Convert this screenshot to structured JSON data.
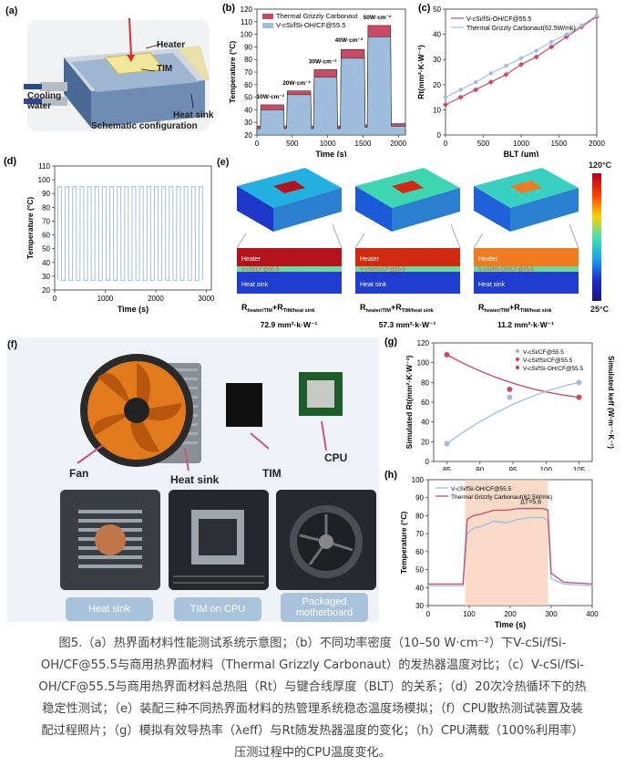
{
  "panels": {
    "a": {
      "label": "(a)",
      "heater": "Heater",
      "tim": "TIM",
      "cooling": "Cooling\nwater",
      "heatsink": "Heat sink",
      "caption": "Schematic configuration"
    },
    "e": {
      "label": "(e)",
      "scale_max": "120°C",
      "scale_min": "25°C",
      "heater": "Heater",
      "sample": "V-cSi/CF@55.5",
      "sample2": "V-cSi/fSi/CF@55.5",
      "sample3": "V-cSi/fSi-OH/CF@55.5",
      "heatsink": "Heat sink",
      "formula": "R",
      "sub1": "heater/TIM",
      "plus": "+R",
      "sub2": "TIM/heat sink",
      "values": [
        "72.9 mm²·k·W⁻¹",
        "57.3 mm²·k·W⁻¹",
        "11.2 mm²·k·W⁻¹"
      ]
    },
    "f": {
      "label": "(f)",
      "fan": "Fan",
      "heatsink": "Heat sink",
      "tim": "TIM",
      "cpu": "CPU",
      "pills": [
        "Heat sink",
        "TIM on CPU",
        "Packaged\nmotherboard"
      ]
    }
  },
  "chart_data": [
    {
      "id": "b",
      "label": "(b)",
      "type": "area",
      "xlabel": "Time (s)",
      "ylabel": "Temperature (°C)",
      "xlim": [
        0,
        2100
      ],
      "ylim": [
        20,
        120
      ],
      "xticks": [
        0,
        500,
        1000,
        1500,
        2000
      ],
      "yticks": [
        20,
        30,
        40,
        50,
        60,
        70,
        80,
        90,
        100,
        110,
        120
      ],
      "series": [
        {
          "name": "Thermal Grizzly Carbonaut",
          "color": "#c94a62",
          "x": [
            0,
            50,
            55,
            380,
            385,
            420,
            430,
            760,
            770,
            800,
            810,
            1130,
            1140,
            1180,
            1190,
            1520,
            1530,
            1560,
            1570,
            1890,
            1900,
            1940,
            1950,
            2080,
            2100
          ],
          "y": [
            27,
            27,
            44,
            44,
            27,
            27,
            55,
            55,
            27,
            27,
            72,
            72,
            27,
            27,
            88,
            88,
            28,
            28,
            107,
            107,
            29,
            29,
            29,
            29,
            29
          ]
        },
        {
          "name": "V-cSi/fSi-OH/CF@55.5",
          "color": "#9fbede",
          "x": [
            0,
            50,
            55,
            380,
            385,
            420,
            430,
            760,
            770,
            800,
            810,
            1130,
            1140,
            1180,
            1190,
            1520,
            1530,
            1560,
            1570,
            1890,
            1900,
            1940,
            1950,
            2080,
            2100
          ],
          "y": [
            25,
            25,
            40,
            40,
            25,
            25,
            52,
            52,
            25,
            25,
            66,
            66,
            25,
            25,
            81,
            81,
            26,
            26,
            98,
            98,
            27,
            27,
            27,
            27,
            27
          ]
        }
      ],
      "annotations": [
        {
          "text": "10W·cm⁻²",
          "x": 190,
          "y": 49
        },
        {
          "text": "20W·cm⁻²",
          "x": 560,
          "y": 60
        },
        {
          "text": "30W·cm⁻²",
          "x": 930,
          "y": 77
        },
        {
          "text": "40W·cm⁻²",
          "x": 1300,
          "y": 94
        },
        {
          "text": "50W·cm⁻²",
          "x": 1700,
          "y": 112
        }
      ]
    },
    {
      "id": "c",
      "label": "(c)",
      "type": "line",
      "xlabel": "BLT (μm)",
      "ylabel": "Rt(mm²·K·W⁻¹)",
      "xlim": [
        0,
        2000
      ],
      "ylim": [
        0,
        50
      ],
      "xticks": [
        0,
        500,
        1000,
        1500,
        2000
      ],
      "yticks": [
        0,
        10,
        20,
        30,
        40,
        50
      ],
      "series": [
        {
          "name": "V-cSi/fSi-OH/CF@55.5",
          "color": "#c94a62",
          "marker": "diamond",
          "x": [
            0,
            200,
            400,
            600,
            800,
            1000,
            1200,
            1400,
            1600,
            1800,
            2000
          ],
          "y": [
            12,
            15,
            18,
            21,
            24,
            28,
            31,
            35,
            39,
            43,
            47
          ]
        },
        {
          "name": "Thermal Grizzly Carbonaut(62.5W/mk)",
          "color": "#9fbede",
          "marker": "dot",
          "x": [
            0,
            200,
            400,
            600,
            800,
            1000,
            1200,
            1400,
            1600,
            1800,
            2000
          ],
          "y": [
            15,
            18,
            21,
            24.5,
            27.5,
            30.5,
            33.5,
            37,
            40,
            43.5,
            47.5
          ]
        }
      ]
    },
    {
      "id": "d",
      "label": "(d)",
      "type": "line",
      "xlabel": "Time (s)",
      "ylabel": "Temperature (°C)",
      "xlim": [
        0,
        3100
      ],
      "ylim": [
        20,
        110
      ],
      "xticks": [
        0,
        1000,
        2000,
        3000
      ],
      "yticks": [
        20,
        30,
        40,
        50,
        60,
        70,
        80,
        90,
        100,
        110
      ],
      "cycles": 20,
      "low": 27,
      "high": 95,
      "color": "#9fbede"
    },
    {
      "id": "g",
      "label": "(g)",
      "type": "scatter",
      "xlabel": "",
      "ylabel": "Simulated Rt(mm²·K·W⁻¹)",
      "ylabel_right": "Simulated keff (W·m⁻¹·K⁻¹)",
      "xlim": [
        83,
        107
      ],
      "ylim": [
        0,
        120
      ],
      "xticks": [
        85,
        90,
        95,
        100,
        105
      ],
      "yticks": [
        0,
        20,
        40,
        60,
        80,
        100,
        120
      ],
      "legend": [
        "V-cSi/CF@55.5",
        "V-cSi/fSi/CF@55.5",
        "V-cSi/fSi-OH/CF@55.5"
      ],
      "series": [
        {
          "name": "Rt",
          "color": "#c94a62",
          "x": [
            85,
            94.5,
            105
          ],
          "y": [
            108,
            73,
            65
          ]
        },
        {
          "name": "keff",
          "color": "#9fbede",
          "x": [
            85,
            94.5,
            105
          ],
          "y": [
            18,
            65,
            80
          ]
        }
      ]
    },
    {
      "id": "h",
      "label": "(h)",
      "type": "line",
      "xlabel": "Time (s)",
      "ylabel": "Temperature (°C)",
      "xlim": [
        0,
        400
      ],
      "ylim": [
        30,
        100
      ],
      "xticks": [
        0,
        100,
        200,
        300,
        400
      ],
      "yticks": [
        30,
        40,
        50,
        60,
        70,
        80,
        90,
        100
      ],
      "annotation": "ΔT=5.6",
      "series": [
        {
          "name": "V-cSi/fSi-OH/CF@55.5",
          "color": "#9fbede"
        },
        {
          "name": "Thermal Grizzly Carbonaut(62.5W/mk)",
          "color": "#c94a62"
        }
      ]
    }
  ],
  "caption_lines": [
    "图5.（a）热界面材料性能测试系统示意图；（b）不同功率密度（10–50 W·cm⁻²）下V-cSi/fSi-",
    "OH/CF@55.5与商用热界面材料（Thermal Grizzly Carbonaut）的发热器温度对比；（c）V-cSi/fSi-",
    "OH/CF@55.5与商用热界面材料总热阻（Rt）与键合线厚度（BLT）的关系；（d）20次冷热循环下的热",
    "稳定性测试；（e）装配三种不同热界面材料的热管理系统稳态温度场模拟；（f）CPU散热测试装置及装",
    "配过程照片；（g）模拟有效导热率（λeff）与Rt随发热器温度的变化；（h）CPU满载（100%利用率）",
    "压测过程中的CPU温度变化。"
  ]
}
